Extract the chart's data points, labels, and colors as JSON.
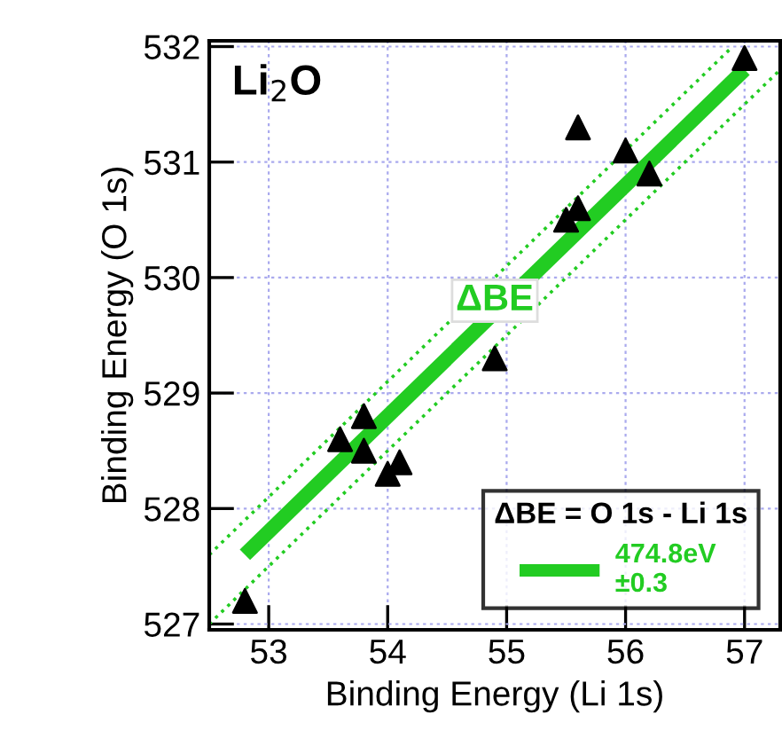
{
  "chart_data": {
    "type": "scatter",
    "xlabel": "Binding Energy (Li 1s)",
    "ylabel": "Binding Energy (O 1s)",
    "legend_title": "ΔBE = O 1s - Li 1s",
    "legend": "bottom right",
    "grid": true,
    "annotations": [
      "Li$_{2}$O",
      {
        "text": "ΔBE",
        "x": 54.9,
        "y": 529.8
      }
    ],
    "xlim": [
      52.5,
      57.3
    ],
    "ylim": [
      526.95,
      532.05
    ],
    "xticks": [
      53,
      54,
      55,
      56,
      57
    ],
    "yticks": [
      527,
      528,
      529,
      530,
      531,
      532
    ],
    "series": [
      {
        "type": "line",
        "line_style": "dotted",
        "color": "#22cc22",
        "x": [
          52.5,
          56.9
        ],
        "values": [
          527.6,
          532.0
        ]
      },
      {
        "type": "line",
        "line_style": "dotted",
        "color": "#22cc22",
        "x": [
          52.5,
          57.3
        ],
        "values": [
          527.0,
          531.8
        ]
      },
      {
        "type": "line",
        "line_style": "solid",
        "name": "474.8eV\n±0.3",
        "color": "#22cc22",
        "x": [
          52.8,
          57.0
        ],
        "values": [
          527.6,
          531.8
        ]
      },
      {
        "marker": "triangle",
        "color": "#000000",
        "x": [
          57.0,
          55.6,
          56.0,
          56.2,
          55.6,
          55.5,
          54.9,
          53.8,
          53.6,
          53.8,
          54.1,
          54.0,
          52.8
        ],
        "values": [
          531.9,
          531.3,
          531.1,
          530.9,
          530.6,
          530.5,
          529.3,
          528.8,
          528.6,
          528.5,
          528.4,
          528.3,
          527.2
        ]
      }
    ]
  }
}
